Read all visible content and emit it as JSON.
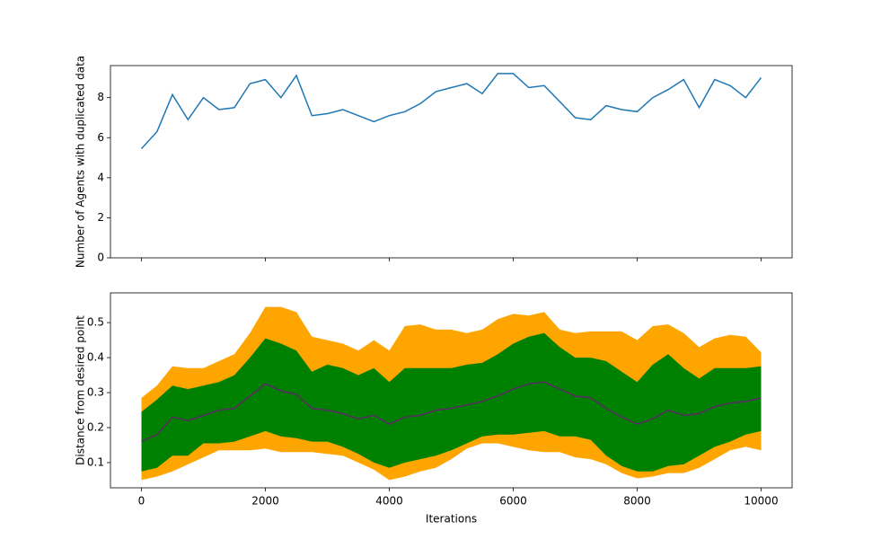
{
  "chart_data": [
    {
      "type": "line",
      "ylabel": "Number of Agents with duplicated data",
      "x": [
        0,
        250,
        500,
        750,
        1000,
        1250,
        1500,
        1750,
        2000,
        2250,
        2500,
        2750,
        3000,
        3250,
        3500,
        3750,
        4000,
        4250,
        4500,
        4750,
        5000,
        5250,
        5500,
        5750,
        6000,
        6250,
        6500,
        6750,
        7000,
        7250,
        7500,
        7750,
        8000,
        8250,
        8500,
        8750,
        9000,
        9250,
        9500,
        9750,
        10000
      ],
      "values": [
        5.45,
        6.3,
        8.15,
        6.9,
        8.0,
        7.4,
        7.5,
        8.7,
        8.9,
        8.0,
        9.1,
        7.1,
        7.2,
        7.4,
        7.1,
        6.8,
        7.1,
        7.3,
        7.7,
        8.3,
        8.5,
        8.7,
        8.2,
        9.2,
        9.2,
        8.5,
        8.6,
        7.8,
        7.0,
        6.9,
        7.6,
        7.4,
        7.3,
        8.0,
        8.4,
        8.9,
        7.5,
        8.9,
        8.6,
        8.0,
        9.0
      ],
      "color": "#1f77b4",
      "xlim": [
        -500,
        10500
      ],
      "xticks": [
        0,
        2000,
        4000,
        6000,
        8000,
        10000
      ],
      "show_xtick_labels": false,
      "ylim": [
        0,
        9.6
      ],
      "yticks": [
        0,
        2,
        4,
        6,
        8
      ]
    },
    {
      "type": "band",
      "xlabel": "Iterations",
      "ylabel": "Distance from desired point",
      "x": [
        0,
        250,
        500,
        750,
        1000,
        1250,
        1500,
        1750,
        2000,
        2250,
        2500,
        2750,
        3000,
        3250,
        3500,
        3750,
        4000,
        4250,
        4500,
        4750,
        5000,
        5250,
        5500,
        5750,
        6000,
        6250,
        6500,
        6750,
        7000,
        7250,
        7500,
        7750,
        8000,
        8250,
        8500,
        8750,
        9000,
        9250,
        9500,
        9750,
        10000
      ],
      "bands": [
        {
          "color": "orange",
          "upper": [
            0.285,
            0.32,
            0.375,
            0.37,
            0.37,
            0.39,
            0.41,
            0.47,
            0.545,
            0.545,
            0.53,
            0.46,
            0.45,
            0.44,
            0.42,
            0.45,
            0.42,
            0.49,
            0.495,
            0.48,
            0.48,
            0.47,
            0.48,
            0.51,
            0.525,
            0.52,
            0.53,
            0.48,
            0.47,
            0.475,
            0.475,
            0.475,
            0.45,
            0.49,
            0.495,
            0.47,
            0.43,
            0.455,
            0.465,
            0.46,
            0.415
          ],
          "lower": [
            0.05,
            0.06,
            0.075,
            0.095,
            0.115,
            0.135,
            0.135,
            0.135,
            0.14,
            0.13,
            0.13,
            0.13,
            0.125,
            0.12,
            0.1,
            0.08,
            0.05,
            0.06,
            0.075,
            0.085,
            0.11,
            0.14,
            0.155,
            0.155,
            0.145,
            0.135,
            0.13,
            0.13,
            0.115,
            0.11,
            0.095,
            0.07,
            0.055,
            0.06,
            0.07,
            0.07,
            0.085,
            0.11,
            0.135,
            0.145,
            0.135
          ]
        },
        {
          "color": "green",
          "upper": [
            0.245,
            0.28,
            0.32,
            0.31,
            0.32,
            0.33,
            0.35,
            0.4,
            0.455,
            0.44,
            0.42,
            0.36,
            0.38,
            0.37,
            0.35,
            0.37,
            0.33,
            0.37,
            0.37,
            0.37,
            0.37,
            0.38,
            0.385,
            0.41,
            0.44,
            0.46,
            0.47,
            0.43,
            0.4,
            0.4,
            0.39,
            0.36,
            0.33,
            0.38,
            0.41,
            0.37,
            0.34,
            0.37,
            0.37,
            0.37,
            0.375
          ],
          "lower": [
            0.075,
            0.085,
            0.12,
            0.12,
            0.155,
            0.155,
            0.16,
            0.175,
            0.19,
            0.175,
            0.17,
            0.16,
            0.16,
            0.145,
            0.125,
            0.1,
            0.085,
            0.1,
            0.11,
            0.12,
            0.135,
            0.155,
            0.175,
            0.18,
            0.18,
            0.185,
            0.19,
            0.175,
            0.175,
            0.165,
            0.12,
            0.09,
            0.075,
            0.075,
            0.09,
            0.095,
            0.12,
            0.145,
            0.16,
            0.18,
            0.19
          ]
        }
      ],
      "line": {
        "color": "#5b2a66",
        "values": [
          0.16,
          0.18,
          0.23,
          0.22,
          0.235,
          0.25,
          0.255,
          0.29,
          0.325,
          0.305,
          0.295,
          0.255,
          0.25,
          0.24,
          0.225,
          0.235,
          0.21,
          0.23,
          0.235,
          0.25,
          0.255,
          0.265,
          0.275,
          0.29,
          0.31,
          0.325,
          0.33,
          0.31,
          0.29,
          0.285,
          0.255,
          0.23,
          0.21,
          0.225,
          0.25,
          0.235,
          0.24,
          0.26,
          0.27,
          0.275,
          0.285
        ]
      },
      "xlim": [
        -500,
        10500
      ],
      "xticks": [
        0,
        2000,
        4000,
        6000,
        8000,
        10000
      ],
      "show_xtick_labels": true,
      "ylim": [
        0.028,
        0.585
      ],
      "yticks": [
        0.1,
        0.2,
        0.3,
        0.4,
        0.5
      ]
    }
  ]
}
